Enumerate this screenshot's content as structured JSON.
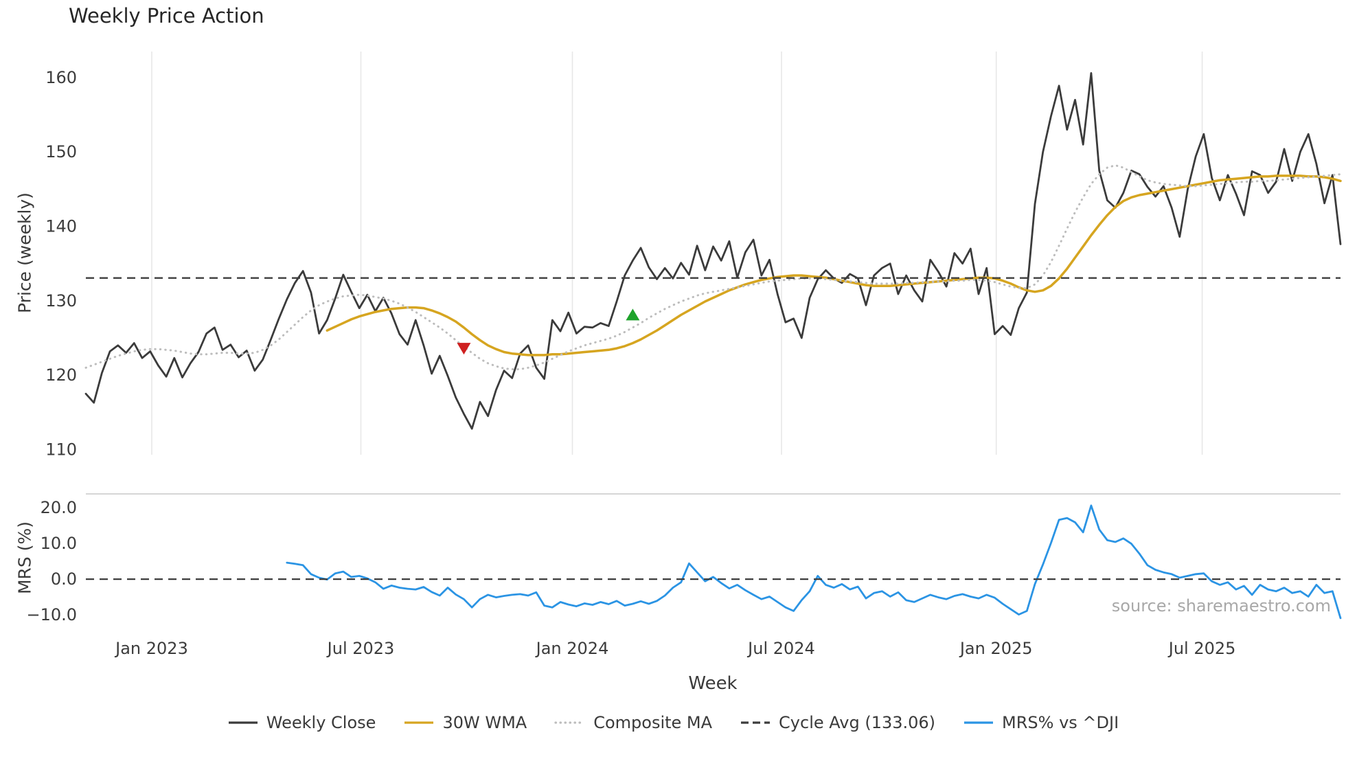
{
  "source_note": "source: sharemaestro.com",
  "colors": {
    "weekly_close": "#3b3b3b",
    "wma_30w": "#d6a520",
    "composite_ma": "#bdbdbd",
    "cycle_avg": "#3c3c3c",
    "mrs_line": "#2b94e4",
    "sell_marker": "#cf1f1f",
    "buy_marker": "#1fa32c",
    "gridline": "#e7e7e7",
    "panel_border": "#c9c9c9"
  },
  "chart_data": {
    "type": "line",
    "title": "Weekly Price Action",
    "xlabel": "Week",
    "x_unit": "week_index",
    "n_weeks": 157,
    "x_ticks": [
      {
        "label": "Jan 2023",
        "index": 8.2
      },
      {
        "label": "Jul 2023",
        "index": 34.2
      },
      {
        "label": "Jan 2024",
        "index": 60.5
      },
      {
        "label": "Jul 2024",
        "index": 86.5
      },
      {
        "label": "Jan 2025",
        "index": 113.2
      },
      {
        "label": "Jul 2025",
        "index": 138.8
      }
    ],
    "panels": [
      {
        "name": "price",
        "ylabel": "Price (weekly)",
        "ylim": [
          109.3,
          163.5
        ],
        "yticks": [
          160,
          150,
          140,
          130,
          120,
          110
        ],
        "ytick_labels": [
          "160",
          "150",
          "140",
          "130",
          "120",
          "110"
        ],
        "grid_vertical": true,
        "series": [
          {
            "name": "Weekly Close",
            "color": "#3b3b3b",
            "style": "solid",
            "width": 2.8,
            "start_index": 0,
            "values": [
              117.5,
              116.3,
              120.3,
              123.2,
              124.0,
              123.0,
              124.3,
              122.3,
              123.2,
              121.3,
              119.8,
              122.3,
              119.7,
              121.6,
              123.1,
              125.6,
              126.4,
              123.4,
              124.1,
              122.4,
              123.3,
              120.6,
              122.1,
              124.8,
              127.6,
              130.2,
              132.4,
              134.0,
              131.1,
              125.6,
              127.4,
              130.3,
              133.5,
              131.2,
              129.0,
              130.8,
              128.6,
              130.4,
              128.3,
              125.5,
              124.1,
              127.4,
              124.0,
              120.2,
              122.6,
              119.9,
              117.0,
              114.8,
              112.8,
              116.4,
              114.5,
              118.0,
              120.6,
              119.6,
              122.9,
              124.0,
              121.0,
              119.5,
              127.4,
              125.9,
              128.4,
              125.6,
              126.5,
              126.4,
              127.0,
              126.6,
              129.9,
              133.4,
              135.4,
              137.1,
              134.5,
              132.9,
              134.4,
              133.0,
              135.1,
              133.5,
              137.4,
              134.1,
              137.3,
              135.4,
              138.0,
              133.1,
              136.5,
              138.2,
              133.4,
              135.5,
              130.9,
              127.1,
              127.6,
              125.0,
              130.4,
              132.9,
              134.1,
              133.0,
              132.4,
              133.6,
              133.0,
              129.4,
              133.4,
              134.4,
              135.0,
              130.9,
              133.4,
              131.4,
              129.9,
              135.5,
              133.9,
              131.9,
              136.4,
              135.0,
              137.0,
              130.9,
              134.4,
              125.5,
              126.6,
              125.4,
              129.0,
              131.1,
              143.0,
              150.0,
              154.8,
              158.9,
              153.0,
              157.0,
              151.0,
              160.6,
              147.5,
              143.5,
              142.5,
              144.5,
              147.5,
              147.0,
              145.3,
              144.0,
              145.4,
              142.5,
              138.6,
              145.0,
              149.4,
              152.4,
              146.5,
              143.5,
              146.9,
              144.4,
              141.5,
              147.4,
              146.9,
              144.5,
              146.0,
              150.4,
              146.1,
              150.0,
              152.4,
              148.4,
              143.1,
              146.9,
              137.6
            ]
          },
          {
            "name": "30W WMA",
            "color": "#d6a520",
            "style": "solid",
            "width": 3.5,
            "start_index": 30,
            "values": [
              126.0,
              126.5,
              127.0,
              127.5,
              127.9,
              128.2,
              128.5,
              128.7,
              128.9,
              129.0,
              129.1,
              129.1,
              129.0,
              128.7,
              128.3,
              127.8,
              127.2,
              126.4,
              125.5,
              124.7,
              124.0,
              123.5,
              123.1,
              122.9,
              122.8,
              122.7,
              122.7,
              122.7,
              122.8,
              122.8,
              122.9,
              123.0,
              123.1,
              123.2,
              123.3,
              123.4,
              123.6,
              123.9,
              124.3,
              124.8,
              125.4,
              126.0,
              126.7,
              127.4,
              128.1,
              128.7,
              129.3,
              129.9,
              130.4,
              130.9,
              131.4,
              131.8,
              132.2,
              132.5,
              132.8,
              133.0,
              133.2,
              133.3,
              133.4,
              133.4,
              133.3,
              133.2,
              133.1,
              132.9,
              132.7,
              132.5,
              132.3,
              132.1,
              132.0,
              132.0,
              132.0,
              132.1,
              132.2,
              132.3,
              132.4,
              132.5,
              132.6,
              132.7,
              132.8,
              132.9,
              133.0,
              133.1,
              133.1,
              133.0,
              132.7,
              132.3,
              131.8,
              131.4,
              131.2,
              131.4,
              132.0,
              133.0,
              134.3,
              135.8,
              137.3,
              138.8,
              140.2,
              141.5,
              142.6,
              143.4,
              143.9,
              144.2,
              144.4,
              144.6,
              144.8,
              145.0,
              145.2,
              145.4,
              145.6,
              145.8,
              146.0,
              146.2,
              146.3,
              146.4,
              146.5,
              146.6,
              146.7,
              146.7,
              146.8,
              146.8,
              146.8,
              146.8,
              146.7,
              146.7,
              146.6,
              146.4,
              146.1
            ]
          },
          {
            "name": "Composite MA",
            "color": "#bdbdbd",
            "style": "dotted",
            "width": 3.0,
            "start_index": 0,
            "values": [
              121.0,
              121.4,
              121.8,
              122.2,
              122.6,
              122.9,
              123.2,
              123.4,
              123.5,
              123.5,
              123.4,
              123.3,
              123.1,
              122.9,
              122.8,
              122.8,
              122.9,
              123.0,
              123.0,
              122.9,
              122.9,
              123.0,
              123.4,
              124.0,
              124.8,
              125.8,
              126.8,
              127.8,
              128.7,
              129.4,
              129.9,
              130.3,
              130.6,
              130.7,
              130.8,
              130.7,
              130.5,
              130.3,
              130.0,
              129.6,
              129.1,
              128.5,
              127.8,
              127.1,
              126.4,
              125.6,
              124.7,
              123.8,
              123.0,
              122.2,
              121.6,
              121.2,
              120.9,
              120.8,
              120.8,
              121.0,
              121.3,
              121.7,
              122.2,
              122.7,
              123.2,
              123.6,
              124.0,
              124.3,
              124.6,
              124.9,
              125.3,
              125.8,
              126.4,
              127.0,
              127.7,
              128.3,
              128.9,
              129.4,
              129.9,
              130.3,
              130.7,
              131.0,
              131.2,
              131.4,
              131.6,
              131.8,
              132.0,
              132.2,
              132.4,
              132.6,
              132.7,
              132.8,
              132.9,
              133.0,
              133.0,
              133.0,
              132.9,
              132.8,
              132.7,
              132.6,
              132.5,
              132.4,
              132.3,
              132.3,
              132.3,
              132.3,
              132.4,
              132.4,
              132.5,
              132.5,
              132.6,
              132.6,
              132.7,
              132.7,
              132.8,
              132.8,
              132.7,
              132.5,
              132.2,
              131.9,
              131.7,
              131.7,
              132.2,
              133.4,
              135.2,
              137.4,
              139.7,
              141.9,
              143.9,
              145.7,
              147.0,
              147.9,
              148.2,
              147.9,
              147.3,
              146.7,
              146.2,
              145.9,
              145.7,
              145.6,
              145.5,
              145.4,
              145.4,
              145.5,
              145.6,
              145.7,
              145.8,
              145.9,
              146.0,
              146.0,
              146.1,
              146.1,
              146.2,
              146.3,
              146.4,
              146.5,
              146.6,
              146.7,
              146.8,
              146.9,
              147.0
            ]
          },
          {
            "name": "Cycle Avg (133.06)",
            "color": "#3c3c3c",
            "style": "dashed",
            "width": 2.4,
            "type": "hline",
            "value": 133.06
          }
        ],
        "markers": [
          {
            "name": "sell-signal",
            "shape": "triangle-down",
            "color": "#cf1f1f",
            "index": 47,
            "value": 123.6
          },
          {
            "name": "buy-signal",
            "shape": "triangle-up",
            "color": "#1fa32c",
            "index": 68,
            "value": 128.1
          }
        ]
      },
      {
        "name": "mrs",
        "ylabel": "MRS (%)",
        "ylim": [
          -12.1,
          23.85
        ],
        "yticks": [
          20,
          10,
          0,
          -10
        ],
        "ytick_labels": [
          "20.0",
          "10.0",
          "0.0",
          "−10.0"
        ],
        "grid_vertical": false,
        "series": [
          {
            "name": "MRS% vs ^DJI",
            "color": "#2b94e4",
            "style": "solid",
            "width": 2.8,
            "start_index": 25,
            "values": [
              4.6,
              4.3,
              3.9,
              1.4,
              0.4,
              -0.1,
              1.6,
              2.1,
              0.6,
              0.9,
              0.2,
              -0.9,
              -2.7,
              -1.8,
              -2.4,
              -2.7,
              -2.9,
              -2.2,
              -3.6,
              -4.6,
              -2.4,
              -4.3,
              -5.6,
              -7.9,
              -5.6,
              -4.4,
              -5.1,
              -4.7,
              -4.4,
              -4.2,
              -4.6,
              -3.7,
              -7.4,
              -7.9,
              -6.4,
              -7.1,
              -7.6,
              -6.8,
              -7.2,
              -6.4,
              -7.0,
              -6.1,
              -7.4,
              -6.9,
              -6.2,
              -6.9,
              -6.1,
              -4.6,
              -2.4,
              -0.9,
              4.4,
              1.9,
              -0.6,
              0.6,
              -1.1,
              -2.6,
              -1.6,
              -3.1,
              -4.4,
              -5.6,
              -4.9,
              -6.4,
              -7.9,
              -8.9,
              -5.9,
              -3.4,
              0.9,
              -1.6,
              -2.4,
              -1.4,
              -2.9,
              -2.1,
              -5.4,
              -3.9,
              -3.4,
              -4.9,
              -3.7,
              -5.9,
              -6.4,
              -5.4,
              -4.4,
              -5.1,
              -5.6,
              -4.7,
              -4.2,
              -4.9,
              -5.4,
              -4.4,
              -5.2,
              -6.9,
              -8.4,
              -9.9,
              -8.9,
              -1.4,
              4.1,
              10.1,
              16.6,
              17.1,
              15.9,
              13.1,
              20.6,
              13.9,
              10.9,
              10.4,
              11.4,
              9.9,
              7.1,
              3.9,
              2.6,
              1.9,
              1.4,
              0.4,
              0.9,
              1.4,
              1.6,
              -0.6,
              -1.6,
              -0.9,
              -2.9,
              -1.9,
              -4.4,
              -1.6,
              -2.9,
              -3.4,
              -2.4,
              -3.9,
              -3.4,
              -4.9,
              -1.6,
              -3.9,
              -3.4,
              -10.9
            ]
          },
          {
            "name": "zero-line",
            "color": "#3c3c3c",
            "style": "dashed",
            "width": 2.2,
            "type": "hline",
            "value": 0
          }
        ]
      }
    ],
    "legend": [
      {
        "label": "Weekly Close",
        "color": "#3b3b3b",
        "style": "solid"
      },
      {
        "label": "30W WMA",
        "color": "#d6a520",
        "style": "solid"
      },
      {
        "label": "Composite MA",
        "color": "#bdbdbd",
        "style": "dotted"
      },
      {
        "label": "Cycle Avg (133.06)",
        "color": "#3c3c3c",
        "style": "dashed"
      },
      {
        "label": "MRS% vs ^DJI",
        "color": "#2b94e4",
        "style": "solid"
      }
    ]
  }
}
